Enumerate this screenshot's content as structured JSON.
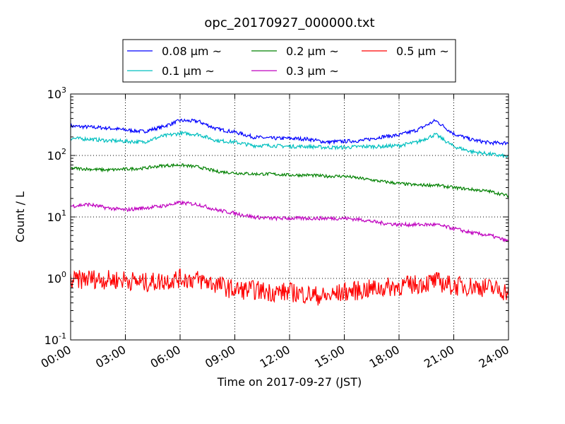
{
  "chart_data": {
    "type": "line",
    "title": "opc_20170927_000000.txt",
    "xlabel": "Time on 2017-09-27 (JST)",
    "ylabel": "Count / L",
    "y_scale": "log",
    "ylim": [
      0.1,
      1000
    ],
    "xlim": [
      "00:00",
      "24:00"
    ],
    "x_tick_labels": [
      "00:00",
      "03:00",
      "06:00",
      "09:00",
      "12:00",
      "15:00",
      "18:00",
      "21:00",
      "24:00"
    ],
    "y_ticks": [
      {
        "base": "10",
        "exp": "-1"
      },
      {
        "base": "10",
        "exp": "0"
      },
      {
        "base": "10",
        "exp": "1"
      },
      {
        "base": "10",
        "exp": "2"
      },
      {
        "base": "10",
        "exp": "3"
      }
    ],
    "grid": true,
    "legend_position": "top",
    "x": [
      "00:00",
      "01:00",
      "02:00",
      "03:00",
      "04:00",
      "05:00",
      "06:00",
      "07:00",
      "08:00",
      "09:00",
      "10:00",
      "11:00",
      "12:00",
      "13:00",
      "14:00",
      "15:00",
      "16:00",
      "17:00",
      "18:00",
      "19:00",
      "20:00",
      "21:00",
      "22:00",
      "23:00",
      "24:00"
    ],
    "series": [
      {
        "name": "0.08 μm ~",
        "color": "#0000ff",
        "values": [
          300,
          290,
          280,
          260,
          245,
          290,
          370,
          360,
          270,
          240,
          200,
          190,
          190,
          185,
          165,
          170,
          175,
          200,
          215,
          260,
          370,
          225,
          180,
          160,
          160
        ]
      },
      {
        "name": "0.1 μm ~",
        "color": "#00bfbf",
        "values": [
          190,
          185,
          175,
          170,
          165,
          205,
          230,
          220,
          175,
          165,
          145,
          145,
          140,
          140,
          135,
          135,
          140,
          140,
          145,
          165,
          220,
          140,
          115,
          105,
          95
        ]
      },
      {
        "name": "0.2 μm ~",
        "color": "#008000",
        "values": [
          62,
          60,
          58,
          60,
          62,
          68,
          70,
          65,
          55,
          52,
          50,
          50,
          48,
          48,
          46,
          46,
          42,
          38,
          35,
          33,
          33,
          30,
          28,
          26,
          22
        ]
      },
      {
        "name": "0.3 μm ~",
        "color": "#bf00bf",
        "values": [
          15,
          16,
          14,
          13,
          14,
          15,
          17,
          16,
          13,
          11.5,
          10,
          9.5,
          9.5,
          9.5,
          9.5,
          9.5,
          9,
          8,
          7.5,
          7.5,
          7.5,
          6.5,
          5.5,
          5,
          4
        ]
      },
      {
        "name": "0.5 μm ~",
        "color": "#ff0000",
        "values": [
          0.9,
          1.0,
          0.95,
          0.95,
          0.85,
          0.9,
          1.0,
          0.95,
          0.8,
          0.65,
          0.65,
          0.6,
          0.6,
          0.55,
          0.5,
          0.6,
          0.65,
          0.7,
          0.75,
          0.8,
          0.9,
          0.75,
          0.75,
          0.7,
          0.6
        ]
      }
    ]
  }
}
